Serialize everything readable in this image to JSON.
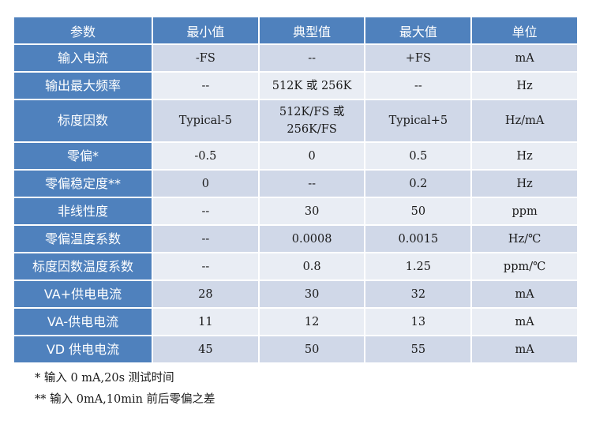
{
  "table": {
    "headers": [
      "参数",
      "最小值",
      "典型值",
      "最大值",
      "单位"
    ],
    "rows": [
      {
        "param": "输入电流",
        "min": "-FS",
        "typ": "--",
        "max": "+FS",
        "unit": "mA"
      },
      {
        "param": "输出最大频率",
        "min": "--",
        "typ": "512K 或 256K",
        "max": "--",
        "unit": "Hz"
      },
      {
        "param": "标度因数",
        "min": "Typical-5",
        "typ_line1": "512K/FS 或",
        "typ_line2": "256K/FS",
        "max": "Typical+5",
        "unit": "Hz/mA"
      },
      {
        "param": "零偏*",
        "min": "-0.5",
        "typ": "0",
        "max": "0.5",
        "unit": "Hz"
      },
      {
        "param": "零偏稳定度**",
        "min": "0",
        "typ": "--",
        "max": "0.2",
        "unit": "Hz"
      },
      {
        "param": "非线性度",
        "min": "--",
        "typ": "30",
        "max": "50",
        "unit": "ppm"
      },
      {
        "param": "零偏温度系数",
        "min": "--",
        "typ": "0.0008",
        "max": "0.0015",
        "unit": "Hz/℃"
      },
      {
        "param": "标度因数温度系数",
        "min": "--",
        "typ": "0.8",
        "max": "1.25",
        "unit": "ppm/℃"
      },
      {
        "param": "VA+供电电流",
        "min": "28",
        "typ": "30",
        "max": "32",
        "unit": "mA"
      },
      {
        "param": "VA-供电电流",
        "min": "11",
        "typ": "12",
        "max": "13",
        "unit": "mA"
      },
      {
        "param": "VD 供电电流",
        "min": "45",
        "typ": "50",
        "max": "55",
        "unit": "mA"
      }
    ]
  },
  "notes": [
    "* 输入 0 mA,20s 测试时间",
    "** 输入 0mA,10min 前后零偏之差"
  ],
  "colors": {
    "header_bg": "#4f81bd",
    "row_odd_bg": "#d0d8e8",
    "row_even_bg": "#e9edf4"
  }
}
